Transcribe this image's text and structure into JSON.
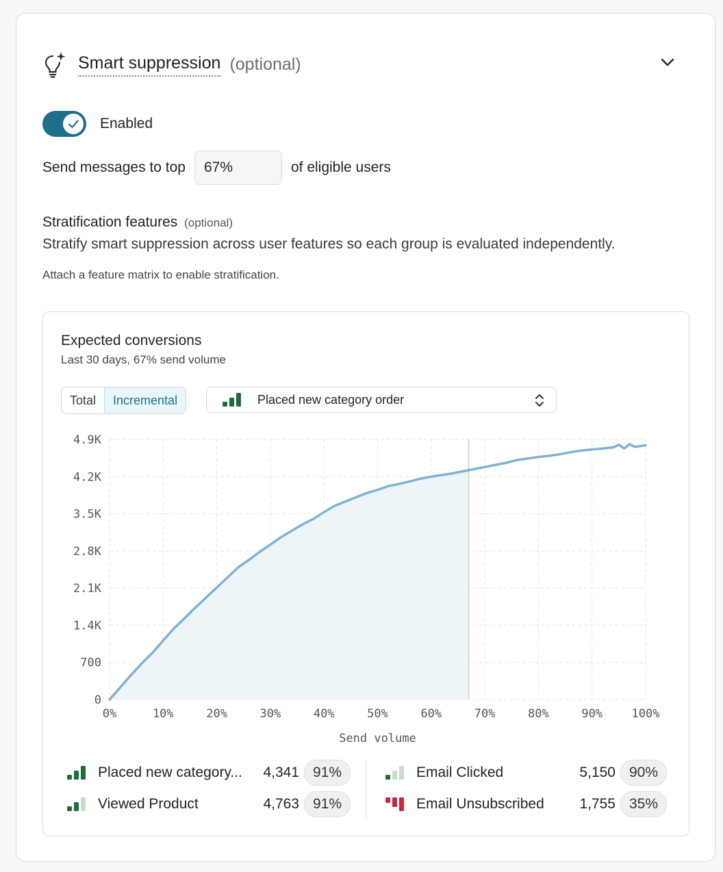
{
  "header": {
    "title": "Smart suppression",
    "optional": "(optional)",
    "icon": "lightbulb-sparkle-icon",
    "collapse_icon": "chevron-down-icon"
  },
  "toggle": {
    "label": "Enabled",
    "on": true
  },
  "send": {
    "prefix": "Send messages to top",
    "value": "67%",
    "suffix": "of eligible users"
  },
  "stratification": {
    "title": "Stratification features",
    "optional": "(optional)",
    "description": "Stratify smart suppression across user features so each group is evaluated independently.",
    "note": "Attach a feature matrix to enable stratification."
  },
  "panel": {
    "title": "Expected conversions",
    "subtitle": "Last 30 days, 67% send volume",
    "tabs": [
      {
        "label": "Total",
        "active": false
      },
      {
        "label": "Incremental",
        "active": true
      }
    ],
    "metric_select": {
      "label": "Placed new category order",
      "icon": "signal-bars-icon"
    }
  },
  "colors": {
    "accent": "#1e6f8c",
    "line": "#7fb2d3",
    "fill": "#eef5f9",
    "green": "#1f6b3a",
    "green_light": "#c7dccd",
    "red": "#c8283f"
  },
  "chart_data": {
    "type": "area",
    "xlabel": "Send volume",
    "ylabel": "",
    "x_ticks": [
      "0%",
      "10%",
      "20%",
      "30%",
      "40%",
      "50%",
      "60%",
      "70%",
      "80%",
      "90%",
      "100%"
    ],
    "y_ticks": [
      "0",
      "700",
      "1.4K",
      "2.1K",
      "2.8K",
      "3.5K",
      "4.2K",
      "4.9K"
    ],
    "xlim": [
      0,
      100
    ],
    "ylim": [
      0,
      4900
    ],
    "grid": true,
    "threshold_x": 67,
    "series": [
      {
        "x": [
          0,
          2,
          4,
          6,
          8,
          10,
          12,
          14,
          16,
          18,
          20,
          22,
          24,
          26,
          28,
          30,
          32,
          34,
          36,
          38,
          40,
          42,
          44,
          46,
          48,
          50,
          52,
          54,
          56,
          58,
          60,
          62,
          64,
          66,
          67,
          68,
          70,
          72,
          74,
          76,
          78,
          80,
          82,
          84,
          86,
          88,
          90,
          92,
          94,
          95,
          96,
          97,
          98,
          100
        ],
        "y": [
          0,
          230,
          460,
          680,
          880,
          1110,
          1340,
          1530,
          1730,
          1920,
          2110,
          2300,
          2490,
          2630,
          2780,
          2920,
          3060,
          3180,
          3300,
          3400,
          3530,
          3650,
          3730,
          3810,
          3890,
          3950,
          4020,
          4060,
          4110,
          4160,
          4200,
          4230,
          4260,
          4300,
          4320,
          4340,
          4380,
          4420,
          4460,
          4510,
          4540,
          4570,
          4590,
          4620,
          4660,
          4690,
          4710,
          4730,
          4750,
          4800,
          4730,
          4810,
          4760,
          4790
        ]
      }
    ]
  },
  "legend": [
    {
      "name": "Placed new category...",
      "value": "4,341",
      "pct": "91%",
      "icon": "signal-bars-high-icon",
      "bars": 3,
      "color": "green"
    },
    {
      "name": "Viewed Product",
      "value": "4,763",
      "pct": "91%",
      "icon": "signal-bars-medium-icon",
      "bars": 2,
      "color": "green"
    },
    {
      "name": "Email Clicked",
      "value": "5,150",
      "pct": "90%",
      "icon": "signal-bars-low-icon",
      "bars": 1,
      "color": "green"
    },
    {
      "name": "Email Unsubscribed",
      "value": "1,755",
      "pct": "35%",
      "icon": "signal-bars-negative-icon",
      "bars": 3,
      "color": "red"
    }
  ]
}
